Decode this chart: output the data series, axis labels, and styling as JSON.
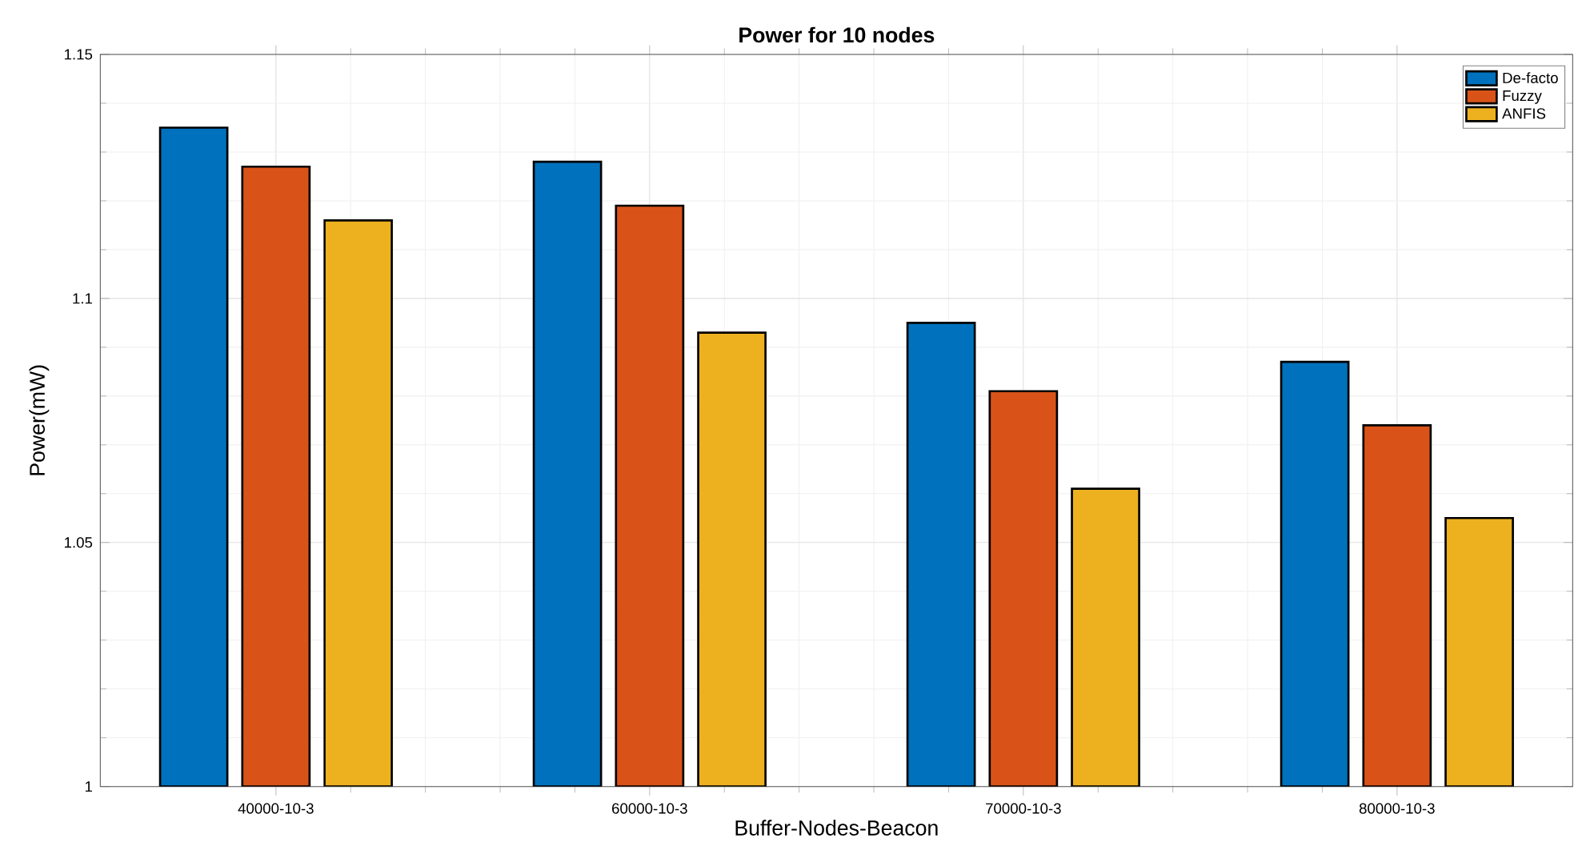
{
  "chart_data": {
    "type": "bar",
    "title": "Power for 10 nodes",
    "xlabel": "Buffer-Nodes-Beacon",
    "ylabel": "Power(mW)",
    "categories": [
      "40000-10-3",
      "60000-10-3",
      "70000-10-3",
      "80000-10-3"
    ],
    "series": [
      {
        "name": "De-facto",
        "color": "#0072bd",
        "values": [
          1.135,
          1.128,
          1.095,
          1.087
        ]
      },
      {
        "name": "Fuzzy",
        "color": "#d95319",
        "values": [
          1.127,
          1.119,
          1.081,
          1.074
        ]
      },
      {
        "name": "ANFIS",
        "color": "#edb120",
        "values": [
          1.116,
          1.093,
          1.061,
          1.055
        ]
      }
    ],
    "ylim": [
      1,
      1.15
    ],
    "yticks": [
      1,
      1.05,
      1.1,
      1.15
    ],
    "grid": true,
    "legend": "top right"
  }
}
